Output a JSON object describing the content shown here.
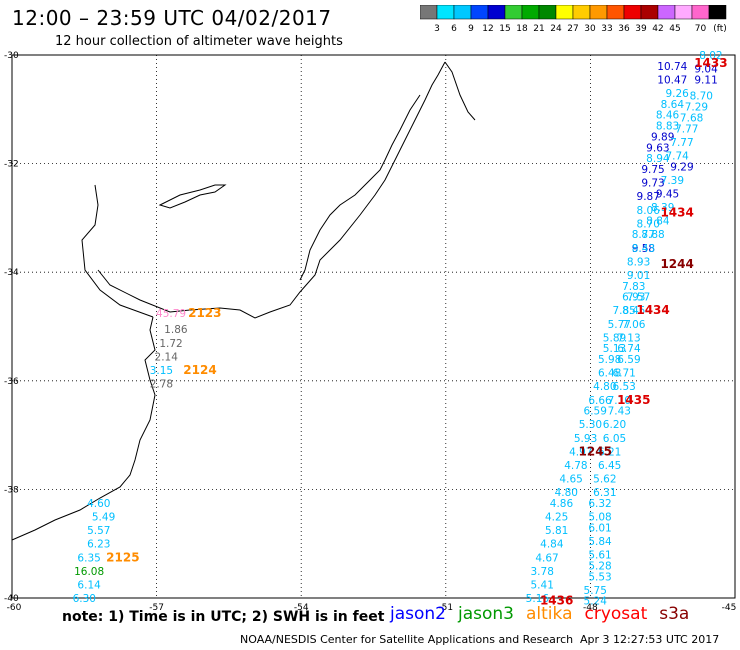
{
  "title": "12:00 – 23:59 UTC 04/02/2017",
  "subtitle": "12 hour collection of altimeter wave heights",
  "colorbar": {
    "colors": [
      "#777777",
      "#00e5ff",
      "#00c8ff",
      "#0046ff",
      "#0000d0",
      "#33cc33",
      "#00aa00",
      "#008800",
      "#ffff00",
      "#ffcc00",
      "#ff9900",
      "#ff5500",
      "#ee0000",
      "#aa0000",
      "#cc66ff",
      "#ffaaff",
      "#ff66cc",
      "#000000"
    ],
    "labels": [
      "3",
      "6",
      "9",
      "12",
      "15",
      "18",
      "21",
      "24",
      "27",
      "30",
      "33",
      "36",
      "39",
      "42",
      "45",
      "70"
    ],
    "unit": "(ft)"
  },
  "axes": {
    "lat_labels": [
      "-30",
      "-32",
      "-34",
      "-36",
      "-38",
      "-40"
    ],
    "lon_labels": [
      "-60",
      "-57",
      "-54",
      "-51",
      "-48",
      "-45"
    ]
  },
  "notes": "note: 1) Time is in UTC; 2) SWH is in feet",
  "satellites": [
    {
      "name": "jason2",
      "color": "#0000ff"
    },
    {
      "name": "jason3",
      "color": "#009900"
    },
    {
      "name": "altika",
      "color": "#ff8c00"
    },
    {
      "name": "cryosat",
      "color": "#ff0000"
    },
    {
      "name": "s3a",
      "color": "#880000"
    }
  ],
  "credit": "NOAA/NESDIS Center for Satellite Applications and Research",
  "credit_time": "Apr  3 12:27:53 UTC 2017",
  "observations": [
    {
      "v": "8.02",
      "lon": -45.5,
      "lat": -30.0,
      "c": "#00bfff"
    },
    {
      "v": "10.74",
      "lon": -46.3,
      "lat": -30.2,
      "c": "#0000cc"
    },
    {
      "v": "9.04",
      "lon": -45.6,
      "lat": -30.25,
      "c": "#0000cc"
    },
    {
      "v": "10.47",
      "lon": -46.3,
      "lat": -30.45,
      "c": "#0000cc"
    },
    {
      "v": "9.11",
      "lon": -45.6,
      "lat": -30.45,
      "c": "#0000cc"
    },
    {
      "v": "9.26",
      "lon": -46.2,
      "lat": -30.7,
      "c": "#00bfff"
    },
    {
      "v": "8.70",
      "lon": -45.7,
      "lat": -30.75,
      "c": "#00bfff"
    },
    {
      "v": "8.64",
      "lon": -46.3,
      "lat": -30.9,
      "c": "#00bfff"
    },
    {
      "v": "7.29",
      "lon": -45.8,
      "lat": -30.95,
      "c": "#00bfff"
    },
    {
      "v": "8.46",
      "lon": -46.4,
      "lat": -31.1,
      "c": "#00bfff"
    },
    {
      "v": "7.68",
      "lon": -45.9,
      "lat": -31.15,
      "c": "#00bfff"
    },
    {
      "v": "8.83",
      "lon": -46.4,
      "lat": -31.3,
      "c": "#00bfff"
    },
    {
      "v": "7.77",
      "lon": -46.0,
      "lat": -31.35,
      "c": "#00bfff"
    },
    {
      "v": "9.89",
      "lon": -46.5,
      "lat": -31.5,
      "c": "#0000cc"
    },
    {
      "v": "7.77",
      "lon": -46.1,
      "lat": -31.6,
      "c": "#00bfff"
    },
    {
      "v": "9.63",
      "lon": -46.6,
      "lat": -31.7,
      "c": "#0000cc"
    },
    {
      "v": "7.74",
      "lon": -46.2,
      "lat": -31.85,
      "c": "#00bfff"
    },
    {
      "v": "8.94",
      "lon": -46.6,
      "lat": -31.9,
      "c": "#00bfff"
    },
    {
      "v": "9.29",
      "lon": -46.1,
      "lat": -32.05,
      "c": "#0000cc"
    },
    {
      "v": "9.75",
      "lon": -46.7,
      "lat": -32.1,
      "c": "#0000cc"
    },
    {
      "v": "7.39",
      "lon": -46.3,
      "lat": -32.3,
      "c": "#00bfff"
    },
    {
      "v": "9.73",
      "lon": -46.7,
      "lat": -32.35,
      "c": "#0000cc"
    },
    {
      "v": "9.45",
      "lon": -46.4,
      "lat": -32.55,
      "c": "#0000cc"
    },
    {
      "v": "9.87",
      "lon": -46.8,
      "lat": -32.6,
      "c": "#0000cc"
    },
    {
      "v": "8.06",
      "lon": -46.8,
      "lat": -32.85,
      "c": "#00bfff"
    },
    {
      "v": "8.39",
      "lon": -46.5,
      "lat": -32.8,
      "c": "#00bfff"
    },
    {
      "v": "8.70",
      "lon": -46.8,
      "lat": -33.1,
      "c": "#00bfff"
    },
    {
      "v": "8.84",
      "lon": -46.6,
      "lat": -33.05,
      "c": "#00bfff"
    },
    {
      "v": "8.77",
      "lon": -46.9,
      "lat": -33.3,
      "c": "#00bfff"
    },
    {
      "v": "8.88",
      "lon": -46.7,
      "lat": -33.3,
      "c": "#00bfff"
    },
    {
      "v": "9.58",
      "lon": -46.9,
      "lat": -33.55,
      "c": "#0000cc"
    },
    {
      "v": "8.93",
      "lon": -47.0,
      "lat": -33.8,
      "c": "#00bfff"
    },
    {
      "v": "8.43",
      "lon": -46.9,
      "lat": -33.55,
      "c": "#00bfff"
    },
    {
      "v": "9.01",
      "lon": -47.0,
      "lat": -34.05,
      "c": "#00bfff"
    },
    {
      "v": "7.83",
      "lon": -47.1,
      "lat": -34.25,
      "c": "#00bfff"
    },
    {
      "v": "6.93",
      "lon": -47.1,
      "lat": -34.45,
      "c": "#00bfff"
    },
    {
      "v": "7.57",
      "lon": -47.0,
      "lat": -34.45,
      "c": "#00bfff"
    },
    {
      "v": "7.85",
      "lon": -47.3,
      "lat": -34.7,
      "c": "#00bfff"
    },
    {
      "v": "8.45",
      "lon": -47.1,
      "lat": -34.7,
      "c": "#00bfff"
    },
    {
      "v": "5.77",
      "lon": -47.4,
      "lat": -34.95,
      "c": "#00bfff"
    },
    {
      "v": "7.06",
      "lon": -47.1,
      "lat": -34.95,
      "c": "#00bfff"
    },
    {
      "v": "5.89",
      "lon": -47.5,
      "lat": -35.2,
      "c": "#00bfff"
    },
    {
      "v": "7.13",
      "lon": -47.2,
      "lat": -35.2,
      "c": "#00bfff"
    },
    {
      "v": "5.13",
      "lon": -47.5,
      "lat": -35.4,
      "c": "#00bfff"
    },
    {
      "v": "6.74",
      "lon": -47.2,
      "lat": -35.4,
      "c": "#00bfff"
    },
    {
      "v": "5.98",
      "lon": -47.6,
      "lat": -35.6,
      "c": "#00bfff"
    },
    {
      "v": "6.59",
      "lon": -47.2,
      "lat": -35.6,
      "c": "#00bfff"
    },
    {
      "v": "6.48",
      "lon": -47.6,
      "lat": -35.85,
      "c": "#00bfff"
    },
    {
      "v": "6.71",
      "lon": -47.3,
      "lat": -35.85,
      "c": "#00bfff"
    },
    {
      "v": "4.80",
      "lon": -47.7,
      "lat": -36.1,
      "c": "#00bfff"
    },
    {
      "v": "6.53",
      "lon": -47.3,
      "lat": -36.1,
      "c": "#00bfff"
    },
    {
      "v": "6.66",
      "lon": -47.8,
      "lat": -36.35,
      "c": "#00bfff"
    },
    {
      "v": "7.10",
      "lon": -47.4,
      "lat": -36.35,
      "c": "#00bfff"
    },
    {
      "v": "6.59",
      "lon": -47.9,
      "lat": -36.55,
      "c": "#00bfff"
    },
    {
      "v": "7.43",
      "lon": -47.4,
      "lat": -36.55,
      "c": "#00bfff"
    },
    {
      "v": "5.30",
      "lon": -48.0,
      "lat": -36.8,
      "c": "#00bfff"
    },
    {
      "v": "6.20",
      "lon": -47.5,
      "lat": -36.8,
      "c": "#00bfff"
    },
    {
      "v": "5.93",
      "lon": -48.1,
      "lat": -37.05,
      "c": "#00bfff"
    },
    {
      "v": "6.05",
      "lon": -47.5,
      "lat": -37.05,
      "c": "#00bfff"
    },
    {
      "v": "4.97",
      "lon": -48.2,
      "lat": -37.3,
      "c": "#00bfff"
    },
    {
      "v": "6.21",
      "lon": -47.6,
      "lat": -37.3,
      "c": "#00bfff"
    },
    {
      "v": "4.78",
      "lon": -48.3,
      "lat": -37.55,
      "c": "#00bfff"
    },
    {
      "v": "6.45",
      "lon": -47.6,
      "lat": -37.55,
      "c": "#00bfff"
    },
    {
      "v": "4.65",
      "lon": -48.4,
      "lat": -37.8,
      "c": "#00bfff"
    },
    {
      "v": "5.62",
      "lon": -47.7,
      "lat": -37.8,
      "c": "#00bfff"
    },
    {
      "v": "4.80",
      "lon": -48.5,
      "lat": -38.05,
      "c": "#00bfff"
    },
    {
      "v": "6.31",
      "lon": -47.7,
      "lat": -38.05,
      "c": "#00bfff"
    },
    {
      "v": "4.86",
      "lon": -48.6,
      "lat": -38.25,
      "c": "#00bfff"
    },
    {
      "v": "6.32",
      "lon": -47.8,
      "lat": -38.25,
      "c": "#00bfff"
    },
    {
      "v": "4.25",
      "lon": -48.7,
      "lat": -38.5,
      "c": "#00bfff"
    },
    {
      "v": "5.08",
      "lon": -47.8,
      "lat": -38.5,
      "c": "#00bfff"
    },
    {
      "v": "5.81",
      "lon": -48.7,
      "lat": -38.75,
      "c": "#00bfff"
    },
    {
      "v": "6.01",
      "lon": -47.8,
      "lat": -38.7,
      "c": "#00bfff"
    },
    {
      "v": "4.84",
      "lon": -48.8,
      "lat": -39.0,
      "c": "#00bfff"
    },
    {
      "v": "5.84",
      "lon": -47.8,
      "lat": -38.95,
      "c": "#00bfff"
    },
    {
      "v": "4.67",
      "lon": -48.9,
      "lat": -39.25,
      "c": "#00bfff"
    },
    {
      "v": "5.61",
      "lon": -47.8,
      "lat": -39.2,
      "c": "#00bfff"
    },
    {
      "v": "3.78",
      "lon": -49.0,
      "lat": -39.5,
      "c": "#00bfff"
    },
    {
      "v": "5.28",
      "lon": -47.8,
      "lat": -39.4,
      "c": "#00bfff"
    },
    {
      "v": "5.41",
      "lon": -49.0,
      "lat": -39.75,
      "c": "#00bfff"
    },
    {
      "v": "5.53",
      "lon": -47.8,
      "lat": -39.6,
      "c": "#00bfff"
    },
    {
      "v": "5.16",
      "lon": -49.1,
      "lat": -40.0,
      "c": "#00bfff"
    },
    {
      "v": "5.75",
      "lon": -47.9,
      "lat": -39.85,
      "c": "#00bfff"
    },
    {
      "v": "5.24",
      "lon": -47.9,
      "lat": -40.05,
      "c": "#00bfff"
    },
    {
      "v": "45.79",
      "lon": -56.7,
      "lat": -34.75,
      "c": "#ff88cc"
    },
    {
      "v": "1.86",
      "lon": -56.6,
      "lat": -35.05,
      "c": "#666666"
    },
    {
      "v": "1.72",
      "lon": -56.7,
      "lat": -35.3,
      "c": "#666666"
    },
    {
      "v": "2.14",
      "lon": -56.8,
      "lat": -35.55,
      "c": "#666666"
    },
    {
      "v": "3.15",
      "lon": -56.9,
      "lat": -35.8,
      "c": "#00bfff"
    },
    {
      "v": "2.78",
      "lon": -56.9,
      "lat": -36.05,
      "c": "#666666"
    },
    {
      "v": "4.60",
      "lon": -58.2,
      "lat": -38.25,
      "c": "#00bfff"
    },
    {
      "v": "5.49",
      "lon": -58.1,
      "lat": -38.5,
      "c": "#00bfff"
    },
    {
      "v": "5.57",
      "lon": -58.2,
      "lat": -38.75,
      "c": "#00bfff"
    },
    {
      "v": "6.23",
      "lon": -58.2,
      "lat": -39.0,
      "c": "#00bfff"
    },
    {
      "v": "6.35",
      "lon": -58.4,
      "lat": -39.25,
      "c": "#00bfff"
    },
    {
      "v": "16.08",
      "lon": -58.4,
      "lat": -39.5,
      "c": "#009900"
    },
    {
      "v": "6.14",
      "lon": -58.4,
      "lat": -39.75,
      "c": "#00bfff"
    },
    {
      "v": "6.30",
      "lon": -58.5,
      "lat": -40.0,
      "c": "#00bfff"
    }
  ],
  "pass_labels": [
    {
      "t": "1433",
      "lon": -45.5,
      "lat": -30.15,
      "c": "#dd0000"
    },
    {
      "t": "1434",
      "lon": -46.2,
      "lat": -32.9,
      "c": "#dd0000"
    },
    {
      "t": "1244",
      "lon": -46.2,
      "lat": -33.85,
      "c": "#880000"
    },
    {
      "t": "1434",
      "lon": -46.7,
      "lat": -34.7,
      "c": "#dd0000"
    },
    {
      "t": "1435",
      "lon": -47.1,
      "lat": -36.35,
      "c": "#dd0000"
    },
    {
      "t": "1245",
      "lon": -47.9,
      "lat": -37.3,
      "c": "#880000"
    },
    {
      "t": "1436",
      "lon": -48.7,
      "lat": -40.05,
      "c": "#dd0000"
    },
    {
      "t": "2123",
      "lon": -56.0,
      "lat": -34.75,
      "c": "#ff8c00"
    },
    {
      "t": "2124",
      "lon": -56.1,
      "lat": -35.8,
      "c": "#ff8c00"
    },
    {
      "t": "2125",
      "lon": -57.7,
      "lat": -39.25,
      "c": "#ff8c00"
    }
  ]
}
